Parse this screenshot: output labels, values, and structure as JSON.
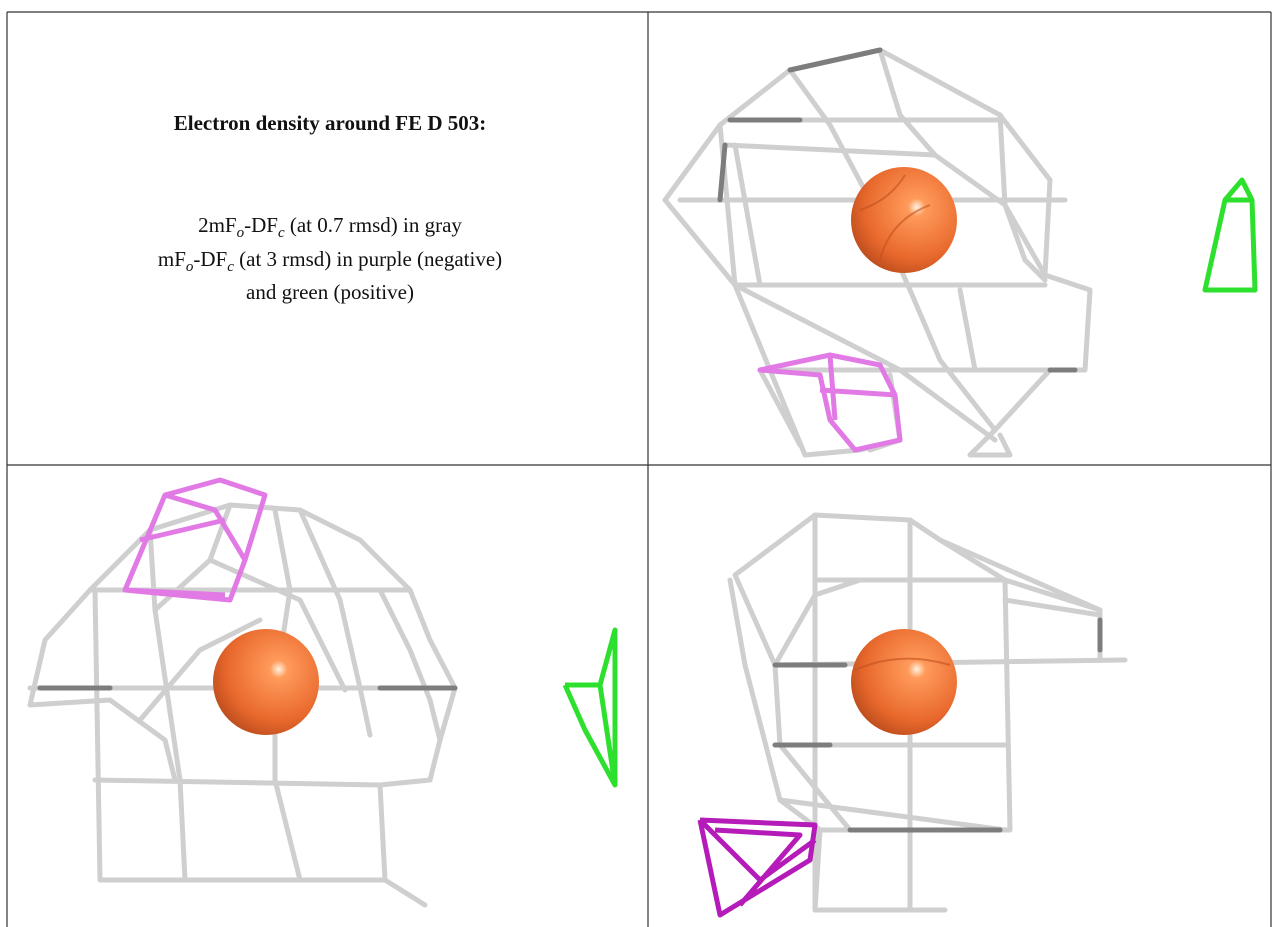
{
  "caption": {
    "title": "Electron density around FE D 503:",
    "line1": [
      "2mF",
      "o",
      "-DF",
      "c",
      " (at 0.7 rmsd) in gray"
    ],
    "line2": [
      "mF",
      "o",
      "-DF",
      "c",
      " (at 3 rmsd) in purple (negative)"
    ],
    "line3": "and green (positive)"
  }
}
